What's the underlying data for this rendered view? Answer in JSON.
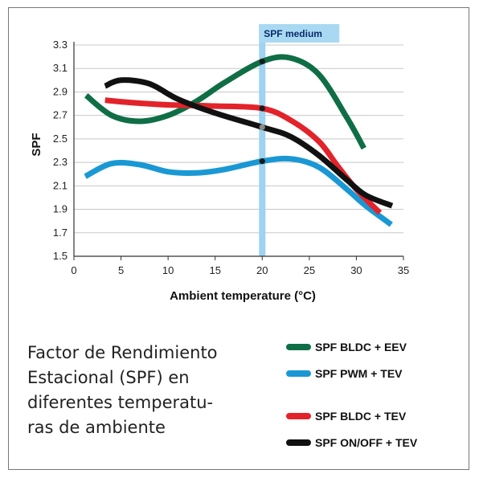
{
  "caption": "Factor de Rendimiento Estacional (SPF) en diferentes temperatu-ras de ambiente",
  "caption_lines": [
    "Factor de Rendimiento",
    "Estacional (SPF) en",
    "diferentes temperatu-",
    "ras de ambiente"
  ],
  "chart_data": {
    "type": "line",
    "xlabel": "Ambient temperature (°C)",
    "ylabel": "SPF",
    "xlim": [
      0,
      35
    ],
    "ylim": [
      1.5,
      3.3
    ],
    "xticks": [
      "0",
      "5",
      "10",
      "15",
      "20",
      "25",
      "30",
      "35"
    ],
    "yticks": [
      "1.5",
      "1.7",
      "1.9",
      "2.1",
      "2.3",
      "2.5",
      "2.7",
      "2.9",
      "3.1",
      "3.3"
    ],
    "grid": "horizontal",
    "legend_position": "bottom-right",
    "annotation": {
      "label": "SPF medium",
      "x": 20
    },
    "series": [
      {
        "name": "SPF BLDC + EEV",
        "color": "#0f6e45",
        "x": [
          1.3,
          4,
          7,
          10,
          13,
          16,
          20,
          23,
          26,
          29,
          30.8
        ],
        "y": [
          2.87,
          2.7,
          2.65,
          2.7,
          2.82,
          2.98,
          3.16,
          3.19,
          3.05,
          2.68,
          2.42
        ]
      },
      {
        "name": "SPF PWM + TEV",
        "color": "#1a98d4",
        "x": [
          1.2,
          4,
          7,
          10,
          13,
          16,
          20,
          23,
          26,
          29,
          31,
          33.7
        ],
        "y": [
          2.18,
          2.29,
          2.28,
          2.22,
          2.21,
          2.24,
          2.31,
          2.33,
          2.26,
          2.07,
          1.93,
          1.77
        ]
      },
      {
        "name": "SPF BLDC + TEV",
        "color": "#e2232a",
        "x": [
          3.3,
          6,
          10,
          15,
          20,
          23,
          26,
          28,
          30,
          32.5
        ],
        "y": [
          2.83,
          2.81,
          2.79,
          2.78,
          2.76,
          2.66,
          2.48,
          2.27,
          2.07,
          1.87
        ]
      },
      {
        "name": "SPF ON/OFF + TEV",
        "color": "#111111",
        "x": [
          3.3,
          5,
          8,
          11,
          15,
          20,
          23,
          26,
          29,
          31,
          33.8
        ],
        "y": [
          2.95,
          3.0,
          2.97,
          2.84,
          2.72,
          2.6,
          2.52,
          2.36,
          2.15,
          2.02,
          1.93
        ]
      }
    ],
    "markers": [
      {
        "series": "SPF BLDC + EEV",
        "x": 20,
        "y": 3.16
      },
      {
        "series": "SPF BLDC + TEV",
        "x": 20,
        "y": 2.76
      },
      {
        "series": "SPF ON/OFF + TEV",
        "x": 20,
        "y": 2.6
      },
      {
        "series": "SPF PWM + TEV",
        "x": 20,
        "y": 2.31
      }
    ]
  }
}
